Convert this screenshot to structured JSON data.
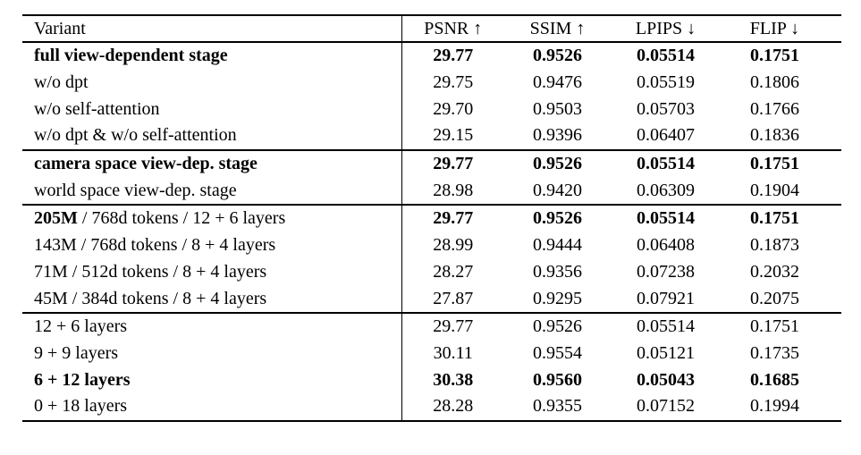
{
  "page": {
    "background_color": "#ffffff",
    "text_color": "#000000",
    "rule_color": "#000000"
  },
  "table": {
    "header": {
      "variant": "Variant",
      "metrics": [
        "PSNR ↑",
        "SSIM ↑",
        "LPIPS ↓",
        "FLIP ↓"
      ]
    },
    "sections": [
      {
        "rows": [
          {
            "variant_bold": "full view-dependent stage",
            "variant_normal": "",
            "values": [
              "29.77",
              "0.9526",
              "0.05514",
              "0.1751"
            ],
            "values_bold": true
          },
          {
            "variant_bold": "",
            "variant_normal": "w/o dpt",
            "values": [
              "29.75",
              "0.9476",
              "0.05519",
              "0.1806"
            ],
            "values_bold": false
          },
          {
            "variant_bold": "",
            "variant_normal": "w/o self-attention",
            "values": [
              "29.70",
              "0.9503",
              "0.05703",
              "0.1766"
            ],
            "values_bold": false
          },
          {
            "variant_bold": "",
            "variant_normal": "w/o dpt & w/o self-attention",
            "values": [
              "29.15",
              "0.9396",
              "0.06407",
              "0.1836"
            ],
            "values_bold": false
          }
        ]
      },
      {
        "rows": [
          {
            "variant_bold": "camera space view-dep. stage",
            "variant_normal": "",
            "values": [
              "29.77",
              "0.9526",
              "0.05514",
              "0.1751"
            ],
            "values_bold": true
          },
          {
            "variant_bold": "",
            "variant_normal": "world space view-dep. stage",
            "values": [
              "28.98",
              "0.9420",
              "0.06309",
              "0.1904"
            ],
            "values_bold": false
          }
        ]
      },
      {
        "rows": [
          {
            "variant_bold": "205M",
            "variant_normal": " / 768d tokens / 12 + 6 layers",
            "values": [
              "29.77",
              "0.9526",
              "0.05514",
              "0.1751"
            ],
            "values_bold": true
          },
          {
            "variant_bold": "",
            "variant_normal": "143M / 768d tokens / 8 + 4 layers",
            "values": [
              "28.99",
              "0.9444",
              "0.06408",
              "0.1873"
            ],
            "values_bold": false
          },
          {
            "variant_bold": "",
            "variant_normal": "71M / 512d tokens / 8 + 4 layers",
            "values": [
              "28.27",
              "0.9356",
              "0.07238",
              "0.2032"
            ],
            "values_bold": false
          },
          {
            "variant_bold": "",
            "variant_normal": "45M / 384d tokens / 8 + 4 layers",
            "values": [
              "27.87",
              "0.9295",
              "0.07921",
              "0.2075"
            ],
            "values_bold": false
          }
        ]
      },
      {
        "rows": [
          {
            "variant_bold": "",
            "variant_normal": "12 + 6 layers",
            "values": [
              "29.77",
              "0.9526",
              "0.05514",
              "0.1751"
            ],
            "values_bold": false
          },
          {
            "variant_bold": "",
            "variant_normal": "9 + 9 layers",
            "values": [
              "30.11",
              "0.9554",
              "0.05121",
              "0.1735"
            ],
            "values_bold": false
          },
          {
            "variant_bold": "6 + 12 layers",
            "variant_normal": "",
            "values": [
              "30.38",
              "0.9560",
              "0.05043",
              "0.1685"
            ],
            "values_bold": true
          },
          {
            "variant_bold": "",
            "variant_normal": "0 + 18 layers",
            "values": [
              "28.28",
              "0.9355",
              "0.07152",
              "0.1994"
            ],
            "values_bold": false
          }
        ]
      }
    ]
  }
}
